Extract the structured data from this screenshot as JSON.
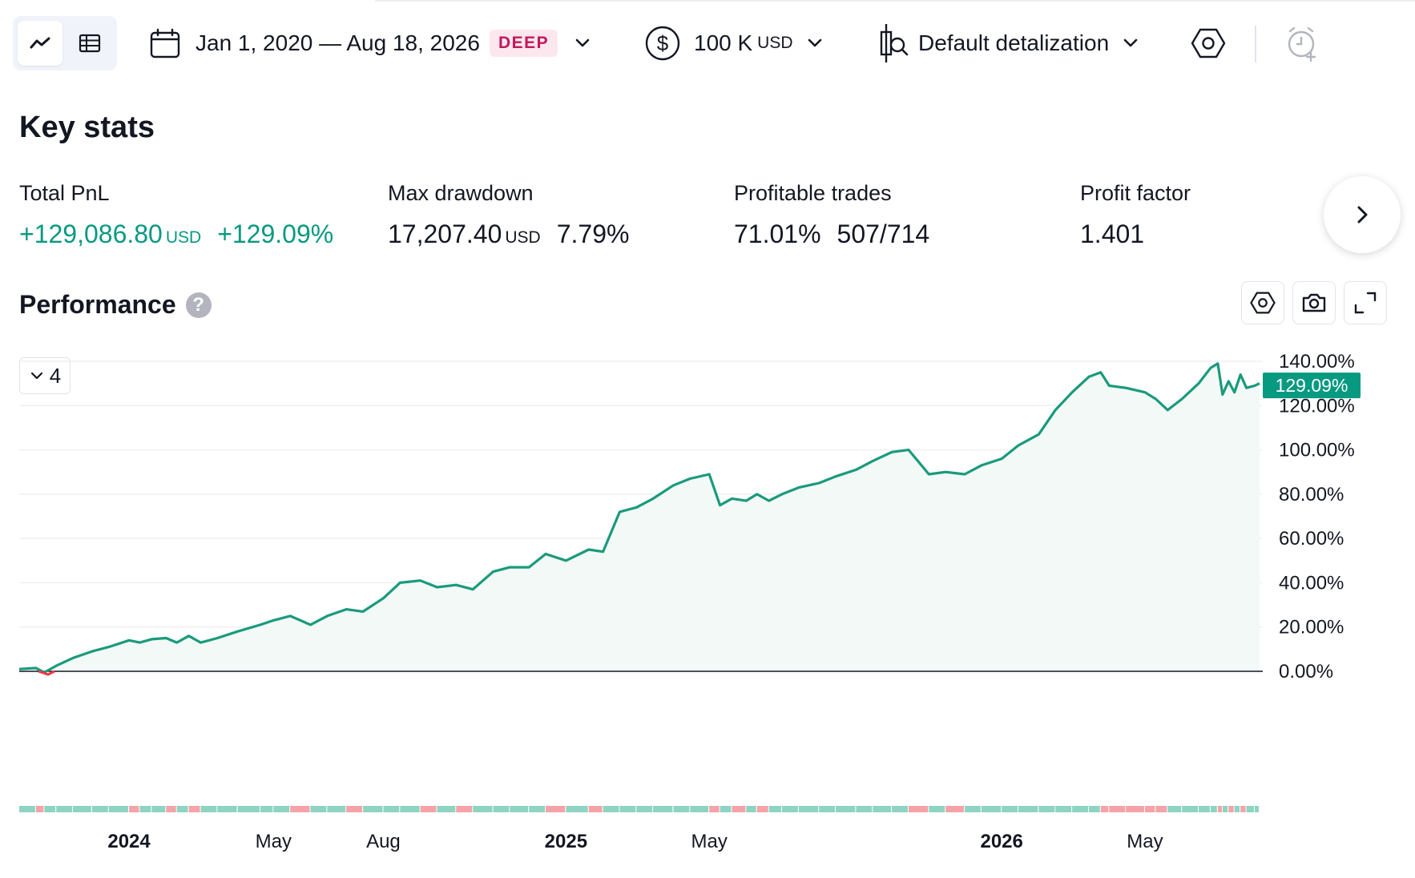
{
  "toolbar": {
    "date_range": "Jan 1, 2020 — Aug 18, 2026",
    "deep_badge": "DEEP",
    "capital_value": "100 K",
    "capital_unit": "USD",
    "detalization": "Default detalization"
  },
  "key_stats": {
    "title": "Key stats",
    "total_pnl": {
      "label": "Total PnL",
      "value": "+129,086.80",
      "unit": "USD",
      "percent": "+129.09%"
    },
    "max_drawdown": {
      "label": "Max drawdown",
      "value": "17,207.40",
      "unit": "USD",
      "percent": "7.79%"
    },
    "profitable_trades": {
      "label": "Profitable trades",
      "percent": "71.01%",
      "ratio": "507/714"
    },
    "profit_factor": {
      "label": "Profit factor",
      "value": "1.401"
    }
  },
  "performance": {
    "title": "Performance",
    "help": "?",
    "legend_count": "4"
  },
  "colors": {
    "accent_green": "#089981",
    "line_green": "#1a9a7c",
    "area_fill": "#f2f9f6",
    "profit_bar": "#8ed4c2",
    "loss_bar": "#f5a3a8",
    "badge_text": "#c2185b",
    "badge_bg": "#fde7ee"
  },
  "icons": [
    "line-chart-icon",
    "table-icon",
    "calendar-icon",
    "chevron-down-icon",
    "dollar-circle-icon",
    "candle-search-icon",
    "settings-hex-icon",
    "alarm-add-icon",
    "chevron-right-icon",
    "help-icon",
    "camera-icon",
    "fullscreen-icon"
  ],
  "chart_data": {
    "type": "area",
    "y_axis": {
      "min": 0,
      "max": 140,
      "ticks": [
        "140.00%",
        "120.00%",
        "100.00%",
        "80.00%",
        "60.00%",
        "40.00%",
        "20.00%",
        "0.00%"
      ],
      "tick_values": [
        140,
        120,
        100,
        80,
        60,
        40,
        20,
        0
      ]
    },
    "x_ticks": [
      {
        "label": "2024",
        "bold": true,
        "date": "2024-01"
      },
      {
        "label": "May",
        "bold": false,
        "date": "2024-05"
      },
      {
        "label": "Aug",
        "bold": false,
        "date": "2024-08"
      },
      {
        "label": "2025",
        "bold": true,
        "date": "2025-01"
      },
      {
        "label": "May",
        "bold": false,
        "date": "2025-05"
      },
      {
        "label": "2026",
        "bold": true,
        "date": "2026-01"
      },
      {
        "label": "May",
        "bold": false,
        "date": "2026-05"
      }
    ],
    "last_value_label": "129.09%",
    "last_value": 129.09,
    "grid": true,
    "series": [
      {
        "values": [
          {
            "x": "2023-10-01",
            "y": 1
          },
          {
            "x": "2023-10-15",
            "y": 1.5
          },
          {
            "x": "2023-10-22",
            "y": -0.5
          },
          {
            "x": "2023-11-01",
            "y": 2.5
          },
          {
            "x": "2023-11-15",
            "y": 6
          },
          {
            "x": "2023-12-01",
            "y": 9
          },
          {
            "x": "2023-12-15",
            "y": 11
          },
          {
            "x": "2024-01-01",
            "y": 14
          },
          {
            "x": "2024-01-10",
            "y": 13
          },
          {
            "x": "2024-01-20",
            "y": 14.5
          },
          {
            "x": "2024-02-01",
            "y": 15
          },
          {
            "x": "2024-02-10",
            "y": 13
          },
          {
            "x": "2024-02-20",
            "y": 16
          },
          {
            "x": "2024-03-01",
            "y": 13
          },
          {
            "x": "2024-03-15",
            "y": 15
          },
          {
            "x": "2024-04-01",
            "y": 18
          },
          {
            "x": "2024-04-20",
            "y": 21
          },
          {
            "x": "2024-05-01",
            "y": 23
          },
          {
            "x": "2024-05-15",
            "y": 25
          },
          {
            "x": "2024-06-01",
            "y": 21
          },
          {
            "x": "2024-06-15",
            "y": 25
          },
          {
            "x": "2024-07-01",
            "y": 28
          },
          {
            "x": "2024-07-15",
            "y": 27
          },
          {
            "x": "2024-08-01",
            "y": 33
          },
          {
            "x": "2024-08-15",
            "y": 40
          },
          {
            "x": "2024-09-01",
            "y": 41
          },
          {
            "x": "2024-09-15",
            "y": 38
          },
          {
            "x": "2024-10-01",
            "y": 39
          },
          {
            "x": "2024-10-15",
            "y": 37
          },
          {
            "x": "2024-11-01",
            "y": 45
          },
          {
            "x": "2024-11-15",
            "y": 47
          },
          {
            "x": "2024-12-01",
            "y": 47
          },
          {
            "x": "2024-12-15",
            "y": 53
          },
          {
            "x": "2025-01-01",
            "y": 50
          },
          {
            "x": "2025-01-20",
            "y": 55
          },
          {
            "x": "2025-02-01",
            "y": 54
          },
          {
            "x": "2025-02-15",
            "y": 72
          },
          {
            "x": "2025-03-01",
            "y": 74
          },
          {
            "x": "2025-03-15",
            "y": 78
          },
          {
            "x": "2025-04-01",
            "y": 84
          },
          {
            "x": "2025-04-15",
            "y": 87
          },
          {
            "x": "2025-05-01",
            "y": 89
          },
          {
            "x": "2025-05-10",
            "y": 75
          },
          {
            "x": "2025-05-20",
            "y": 78
          },
          {
            "x": "2025-06-01",
            "y": 77
          },
          {
            "x": "2025-06-10",
            "y": 80
          },
          {
            "x": "2025-06-20",
            "y": 77
          },
          {
            "x": "2025-07-01",
            "y": 80
          },
          {
            "x": "2025-07-15",
            "y": 83
          },
          {
            "x": "2025-08-01",
            "y": 85
          },
          {
            "x": "2025-08-15",
            "y": 88
          },
          {
            "x": "2025-09-01",
            "y": 91
          },
          {
            "x": "2025-09-15",
            "y": 95
          },
          {
            "x": "2025-10-01",
            "y": 99
          },
          {
            "x": "2025-10-15",
            "y": 100
          },
          {
            "x": "2025-11-01",
            "y": 89
          },
          {
            "x": "2025-11-15",
            "y": 90
          },
          {
            "x": "2025-12-01",
            "y": 89
          },
          {
            "x": "2025-12-15",
            "y": 93
          },
          {
            "x": "2026-01-01",
            "y": 96
          },
          {
            "x": "2026-01-15",
            "y": 102
          },
          {
            "x": "2026-02-01",
            "y": 107
          },
          {
            "x": "2026-02-15",
            "y": 118
          },
          {
            "x": "2026-03-01",
            "y": 126
          },
          {
            "x": "2026-03-15",
            "y": 133
          },
          {
            "x": "2026-03-25",
            "y": 135
          },
          {
            "x": "2026-04-01",
            "y": 129
          },
          {
            "x": "2026-04-15",
            "y": 128
          },
          {
            "x": "2026-05-01",
            "y": 126
          },
          {
            "x": "2026-05-10",
            "y": 123
          },
          {
            "x": "2026-05-20",
            "y": 118
          },
          {
            "x": "2026-06-01",
            "y": 123
          },
          {
            "x": "2026-06-15",
            "y": 130
          },
          {
            "x": "2026-06-25",
            "y": 137
          },
          {
            "x": "2026-07-01",
            "y": 139
          },
          {
            "x": "2026-07-05",
            "y": 125
          },
          {
            "x": "2026-07-10",
            "y": 131
          },
          {
            "x": "2026-07-15",
            "y": 126
          },
          {
            "x": "2026-07-20",
            "y": 134
          },
          {
            "x": "2026-07-25",
            "y": 128
          },
          {
            "x": "2026-08-01",
            "y": 129
          },
          {
            "x": "2026-08-05",
            "y": 130
          }
        ]
      }
    ]
  }
}
